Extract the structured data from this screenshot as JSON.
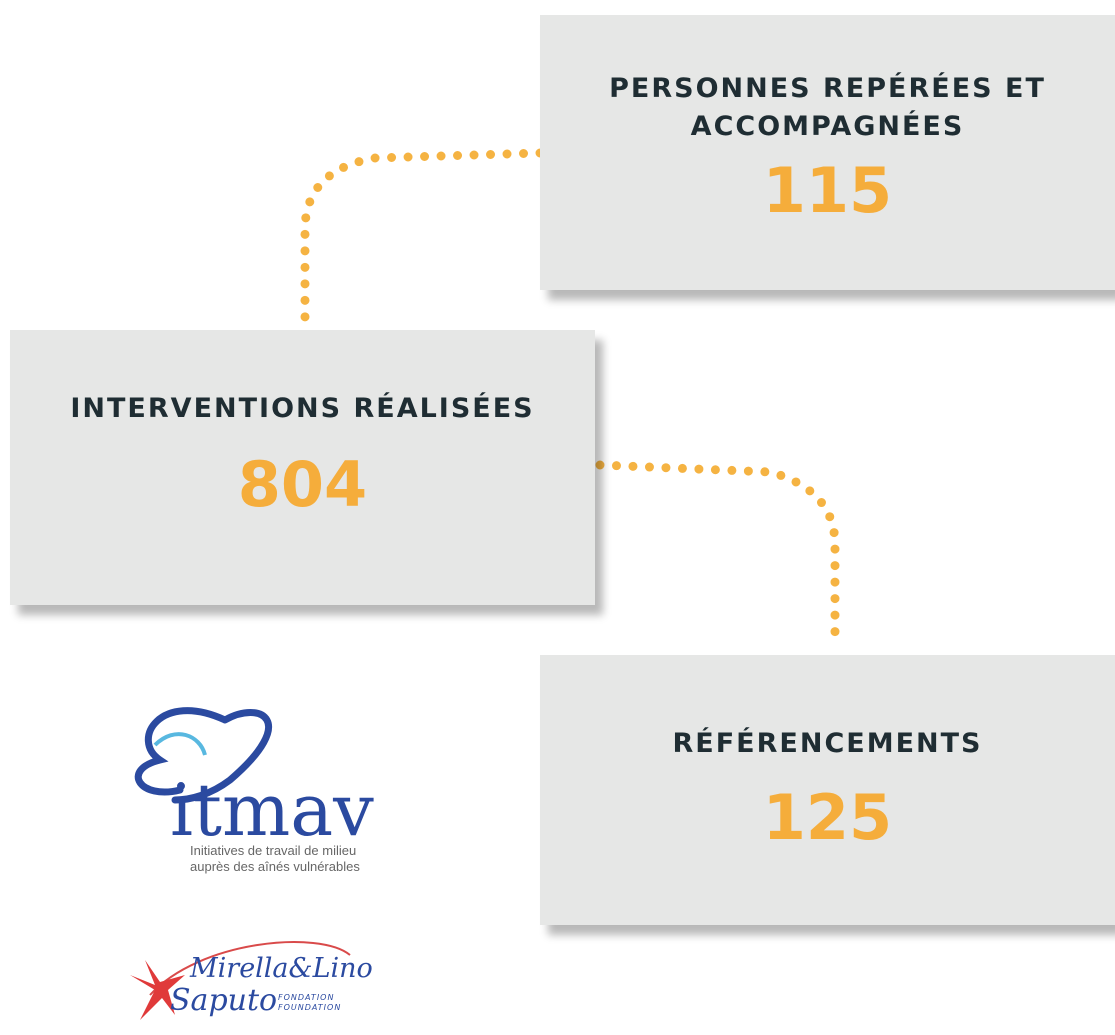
{
  "boxes": [
    {
      "label": "PERSONNES REPÉRÉES ET ACCOMPAGNÉES",
      "value": "115"
    },
    {
      "label": "INTERVENTIONS RÉALISÉES",
      "value": "804"
    },
    {
      "label": "RÉFÉRENCEMENTS",
      "value": "125"
    }
  ],
  "logos": {
    "itmav": {
      "name": "itmav",
      "line1": "Initiatives de travail de milieu",
      "line2": "auprès des aînés vulnérables"
    },
    "saputo": {
      "line1": "Mirella&Lino",
      "line2": "Saputo",
      "fr": "FONDATION",
      "en": "FOUNDATION"
    }
  }
}
